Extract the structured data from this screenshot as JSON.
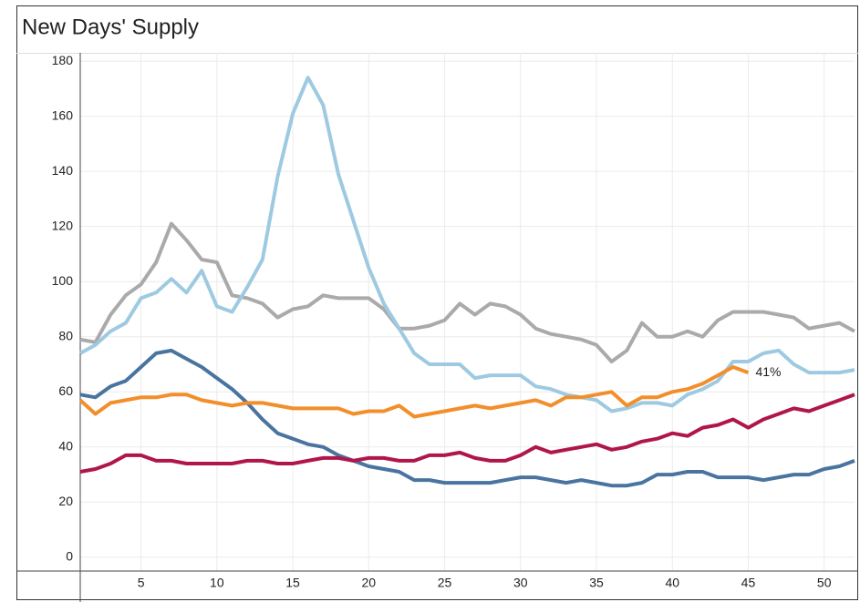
{
  "chart_data": {
    "type": "line",
    "title": "New Days' Supply",
    "x": [
      1,
      2,
      3,
      4,
      5,
      6,
      7,
      8,
      9,
      10,
      11,
      12,
      13,
      14,
      15,
      16,
      17,
      18,
      19,
      20,
      21,
      22,
      23,
      24,
      25,
      26,
      27,
      28,
      29,
      30,
      31,
      32,
      33,
      34,
      35,
      36,
      37,
      38,
      39,
      40,
      41,
      42,
      43,
      44,
      45,
      46,
      47,
      48,
      49,
      50,
      51,
      52
    ],
    "series": [
      {
        "color": "#aaaaaa",
        "values": [
          79,
          78,
          88,
          95,
          99,
          107,
          121,
          115,
          108,
          107,
          95,
          94,
          92,
          87,
          90,
          91,
          95,
          94,
          94,
          94,
          90,
          83,
          83,
          84,
          86,
          92,
          88,
          92,
          91,
          88,
          83,
          81,
          80,
          79,
          77,
          71,
          75,
          85,
          80,
          80,
          82,
          80,
          86,
          89,
          89,
          89,
          88,
          87,
          83,
          84,
          85,
          82
        ]
      },
      {
        "color": "#9ecae1",
        "values": [
          74,
          77,
          82,
          85,
          94,
          96,
          101,
          96,
          104,
          91,
          89,
          98,
          108,
          138,
          161,
          174,
          164,
          139,
          122,
          105,
          92,
          83,
          74,
          70,
          70,
          70,
          65,
          66,
          66,
          66,
          62,
          61,
          59,
          58,
          57,
          53,
          54,
          56,
          56,
          55,
          59,
          61,
          64,
          71,
          71,
          74,
          75,
          70,
          67,
          67,
          67,
          68
        ]
      },
      {
        "color": "#4a74a0",
        "values": [
          59,
          58,
          62,
          64,
          69,
          74,
          75,
          72,
          69,
          65,
          61,
          56,
          50,
          45,
          43,
          41,
          40,
          37,
          35,
          33,
          32,
          31,
          28,
          28,
          27,
          27,
          27,
          27,
          28,
          29,
          29,
          28,
          27,
          28,
          27,
          26,
          26,
          27,
          30,
          30,
          31,
          31,
          29,
          29,
          29,
          28,
          29,
          30,
          30,
          32,
          33,
          35
        ]
      },
      {
        "color": "#f28e2b",
        "label": "41%",
        "values": [
          57,
          52,
          56,
          57,
          58,
          58,
          59,
          59,
          57,
          56,
          55,
          56,
          56,
          55,
          54,
          54,
          54,
          54,
          52,
          53,
          53,
          55,
          51,
          52,
          53,
          54,
          55,
          54,
          55,
          56,
          57,
          55,
          58,
          58,
          59,
          60,
          55,
          58,
          58,
          60,
          61,
          63,
          66,
          69,
          67,
          null,
          null,
          null,
          null,
          null,
          null,
          null
        ]
      },
      {
        "color": "#b0164a",
        "values": [
          31,
          32,
          34,
          37,
          37,
          35,
          35,
          34,
          34,
          34,
          34,
          35,
          35,
          34,
          34,
          35,
          36,
          36,
          35,
          36,
          36,
          35,
          35,
          37,
          37,
          38,
          36,
          35,
          35,
          37,
          40,
          38,
          39,
          40,
          41,
          39,
          40,
          42,
          43,
          45,
          44,
          47,
          48,
          50,
          47,
          50,
          52,
          54,
          53,
          55,
          57,
          59
        ]
      }
    ],
    "xlim": [
      1,
      52
    ],
    "xticks": [
      5,
      10,
      15,
      20,
      25,
      30,
      35,
      40,
      45,
      50
    ],
    "ylim": [
      -5,
      183
    ],
    "yticks": [
      0,
      20,
      40,
      60,
      80,
      100,
      120,
      140,
      160,
      180
    ],
    "grid": true
  }
}
